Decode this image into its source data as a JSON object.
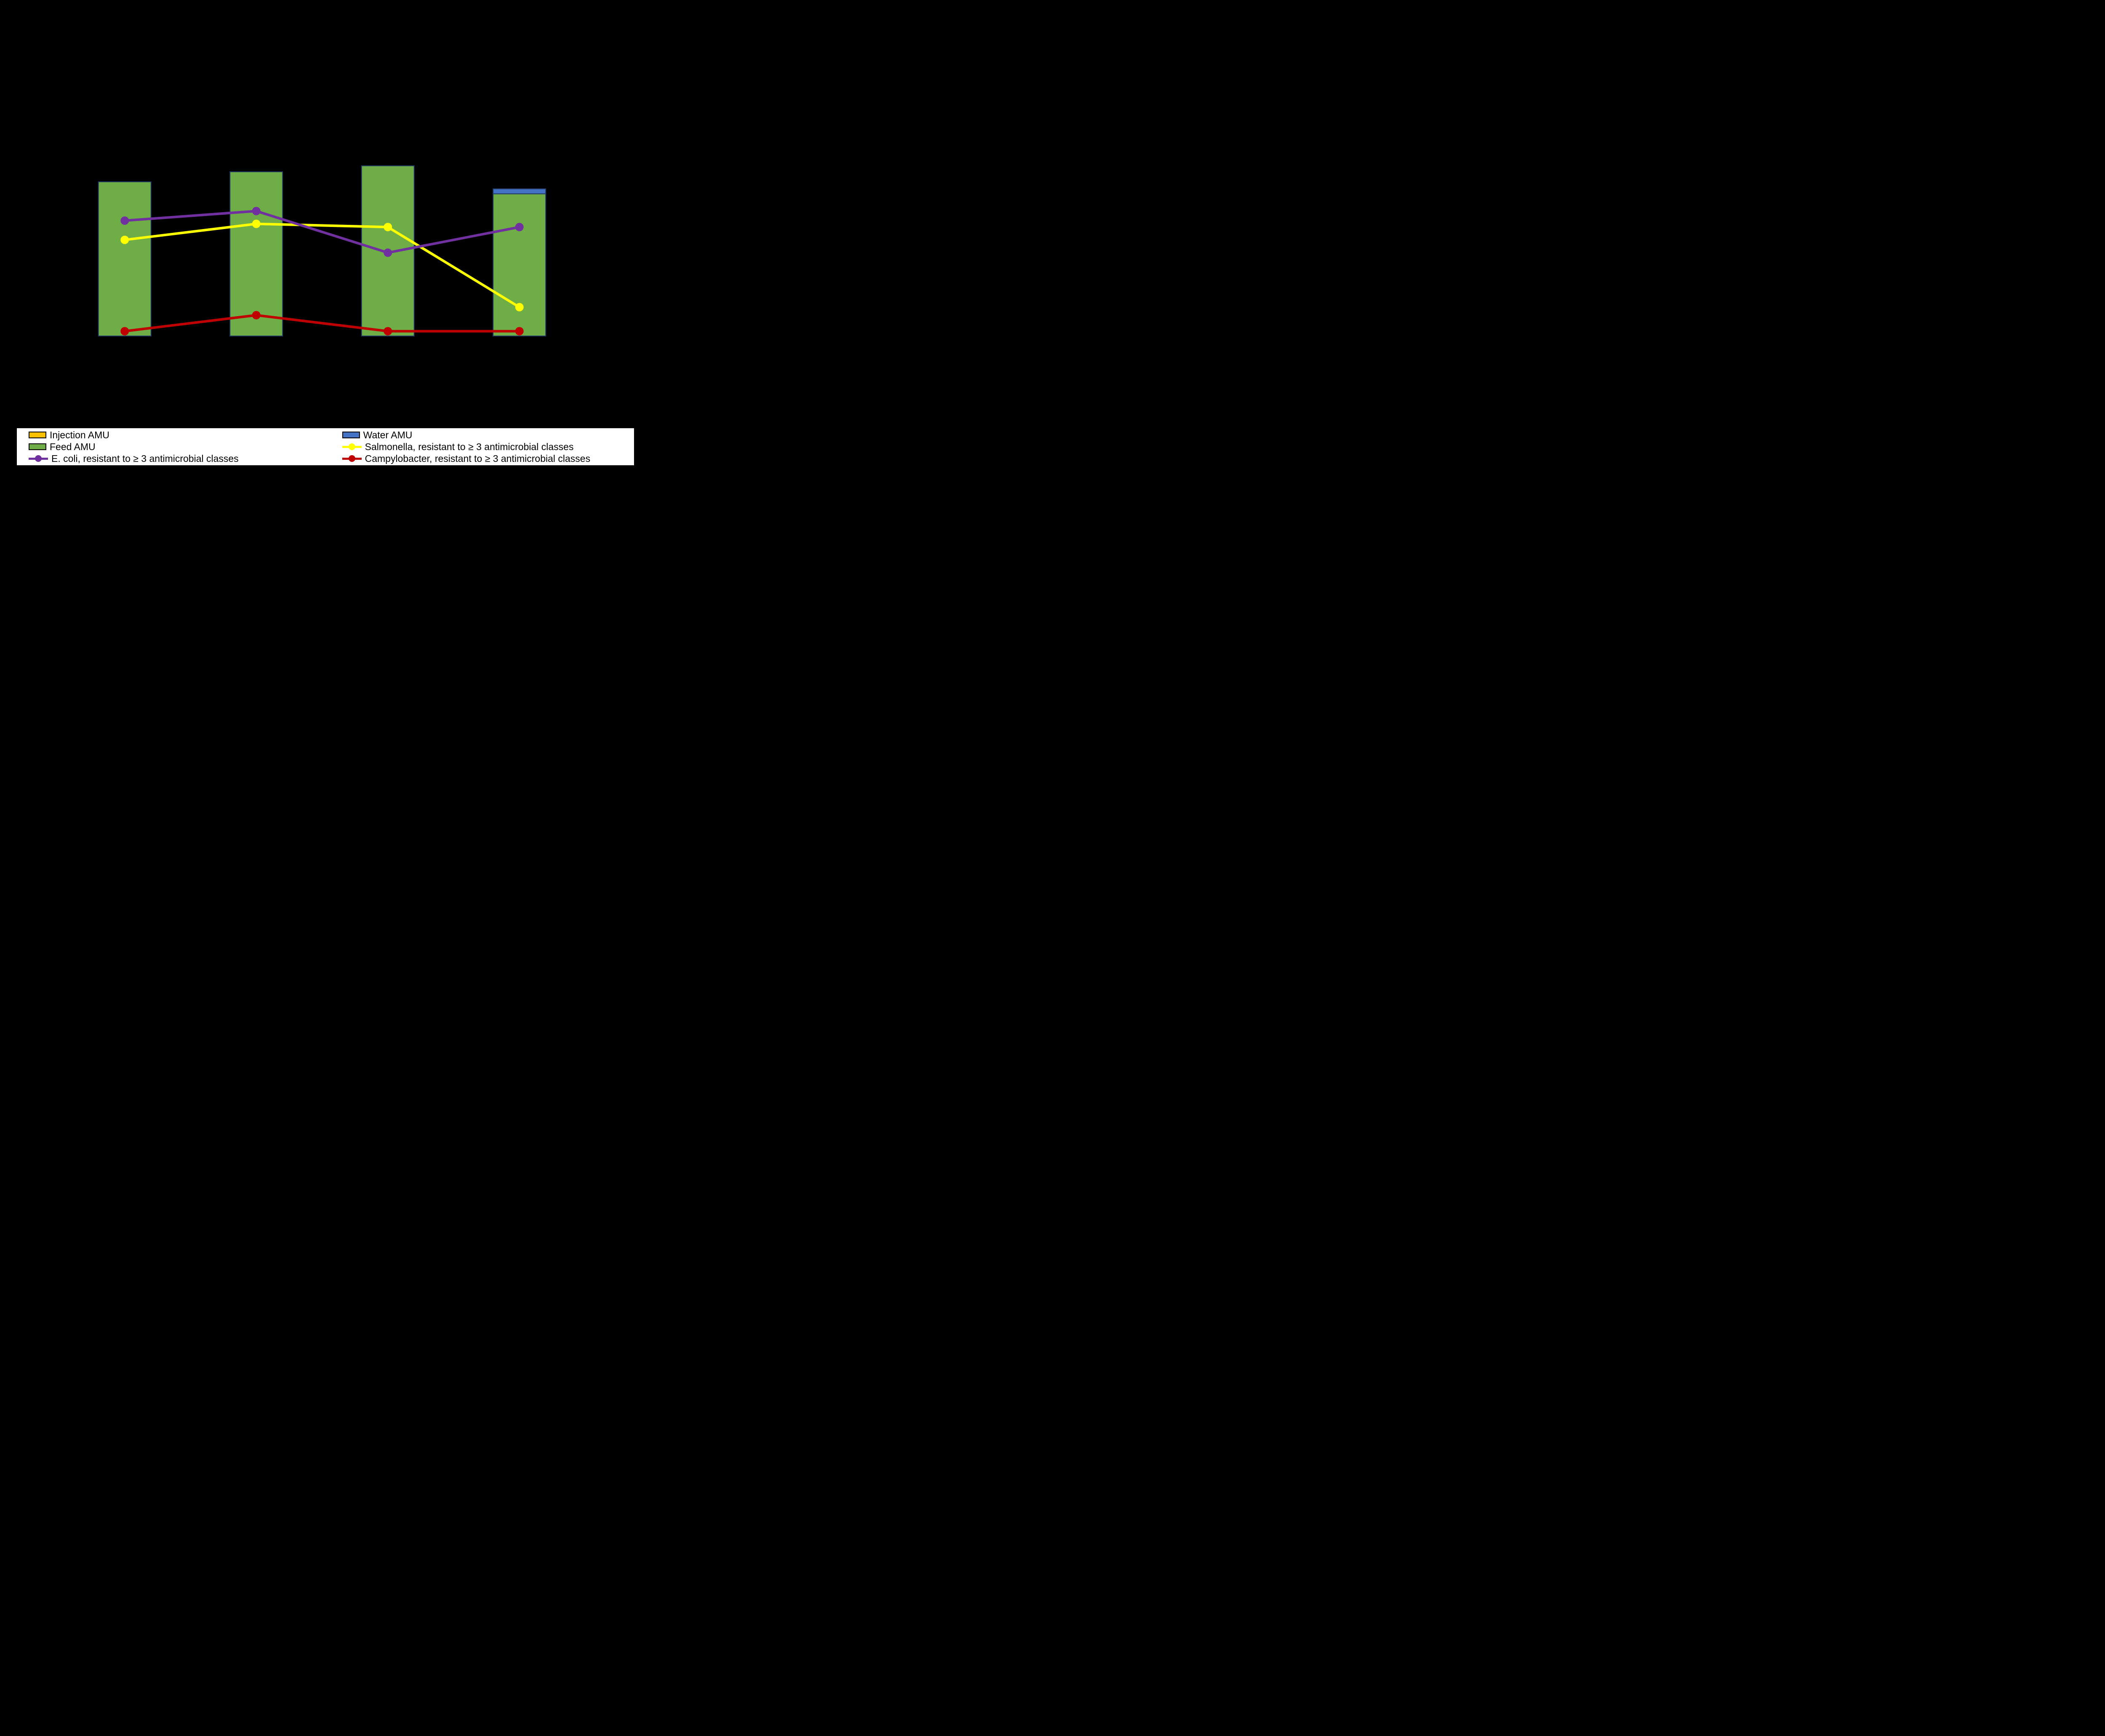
{
  "chart_data": {
    "type": "bar",
    "subtype": "combo-stacked-bars-with-lines",
    "title": "",
    "xlabel": "",
    "ylabel_left": "",
    "ylabel_right": "",
    "categories": [
      "",
      "",
      "",
      ""
    ],
    "left_axis": {
      "min": 0,
      "max": 16,
      "tick_step": 2,
      "labels_visible": false
    },
    "right_axis": {
      "min": 0,
      "max": 100,
      "tick_step": 10,
      "labels_visible": false
    },
    "grid": "off",
    "legend_position": "bottom",
    "bar_series": [
      {
        "name": "Feed AMU",
        "color": "#6FAD46",
        "edge_color": "#1F3864",
        "axis": "left",
        "values": [
          7.7,
          8.2,
          8.5,
          7.1
        ]
      },
      {
        "name": "Water AMU",
        "color": "#4472C4",
        "edge_color": "#1F3864",
        "axis": "left",
        "values": [
          0,
          0,
          0,
          0.25
        ]
      },
      {
        "name": "Injection AMU",
        "color": "#FFC000",
        "edge_color": "#000000",
        "axis": "left",
        "values": [
          0,
          0,
          0,
          0
        ]
      }
    ],
    "line_series": [
      {
        "name": "Salmonella, resistant to ≥ 3 antimicrobial classes",
        "color": "#FFFF00",
        "axis": "right",
        "values": [
          30,
          35,
          34,
          9
        ]
      },
      {
        "name": "E. coli, resistant to ≥ 3 antimicrobial classes",
        "color": "#7030A0",
        "axis": "right",
        "values": [
          36,
          39,
          26,
          34
        ]
      },
      {
        "name": "Campylobacter, resistant to ≥ 3 antimicrobial classes",
        "color": "#C00000",
        "axis": "right",
        "values": [
          1.5,
          6.5,
          1.5,
          1.5
        ]
      }
    ]
  },
  "legend": {
    "items": [
      {
        "label": "Injection AMU",
        "swatch": "rect",
        "color": "#FFC000"
      },
      {
        "label": "Water AMU",
        "swatch": "rect",
        "color": "#4472C4"
      },
      {
        "label": "Feed AMU",
        "swatch": "rect",
        "color": "#6FAD46"
      },
      {
        "label": "Salmonella, resistant to ≥ 3 antimicrobial classes",
        "swatch": "line",
        "color": "#FFFF00"
      },
      {
        "label": "E. coli, resistant to ≥ 3 antimicrobial classes",
        "swatch": "line",
        "color": "#7030A0"
      },
      {
        "label": "Campylobacter, resistant to ≥ 3 antimicrobial classes",
        "swatch": "line",
        "color": "#C00000"
      }
    ]
  },
  "colors": {
    "background": "#000000",
    "legend_background": "#FFFFFF",
    "feed_amu": "#6FAD46",
    "water_amu": "#4472C4",
    "injection_amu": "#FFC000",
    "salmonella_line": "#FFFF00",
    "ecoli_line": "#7030A0",
    "campylobacter_line": "#C00000"
  }
}
